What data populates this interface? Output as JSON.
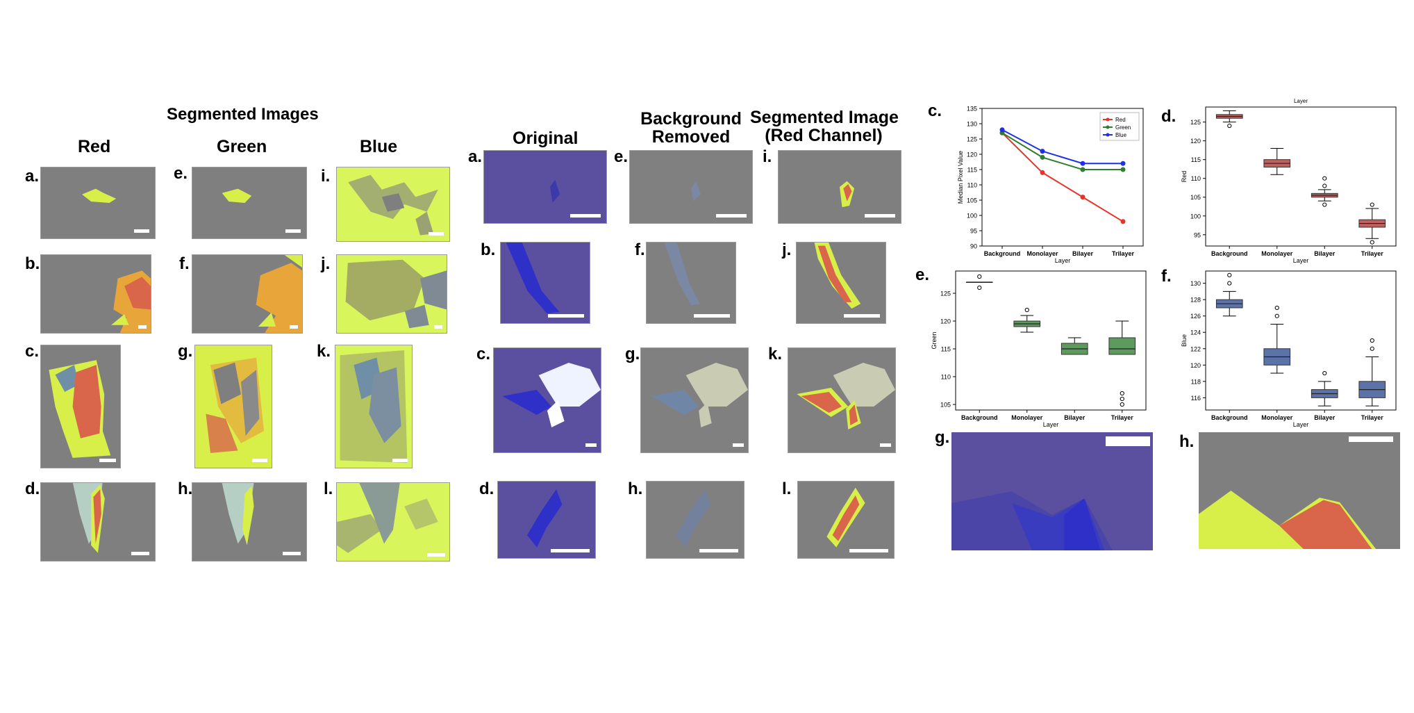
{
  "section_left": {
    "title": "Segmented Images",
    "columns": [
      "Red",
      "Green",
      "Blue"
    ]
  },
  "section_mid": {
    "columns": [
      "Original",
      "Background\nRemoved",
      "Segmented Image\n(Red Channel)"
    ]
  },
  "panel_labels_left": [
    "a.",
    "b.",
    "c.",
    "d.",
    "e.",
    "f.",
    "g.",
    "h.",
    "i.",
    "j.",
    "k.",
    "l."
  ],
  "panel_labels_mid": [
    "a.",
    "b.",
    "c.",
    "d.",
    "e.",
    "f.",
    "g.",
    "h.",
    "i.",
    "j.",
    "k.",
    "l."
  ],
  "panel_labels_right": [
    "c.",
    "d.",
    "e.",
    "f.",
    "g.",
    "h."
  ],
  "colors": {
    "gray_bg": "#7f7f7f",
    "flake_yellow": "#d8ef4a",
    "flake_red": "#d9654b",
    "flake_orange": "#e8a63a",
    "blue_bg": "#5b4fa0",
    "lime": "#d9f55c",
    "red_line": "#e8322a",
    "green_line": "#2f7d2f",
    "blue_line": "#1f2fe6",
    "box_red": "#c26060",
    "box_green": "#5e9a5e",
    "box_blue": "#5b73a9"
  },
  "chart_data": [
    {
      "id": "c",
      "type": "line",
      "title": "",
      "xlabel": "Layer",
      "ylabel": "Median Pixel Value",
      "categories": [
        "Background",
        "Monolayer",
        "Bilayer",
        "Trilayer"
      ],
      "ylim": [
        90,
        135
      ],
      "yticks": [
        90,
        95,
        100,
        105,
        110,
        115,
        120,
        125,
        130,
        135
      ],
      "legend_position": "top-right",
      "series": [
        {
          "name": "Red",
          "color": "#e8322a",
          "values": [
            127,
            114,
            106,
            98
          ]
        },
        {
          "name": "Green",
          "color": "#2f7d2f",
          "values": [
            127,
            119,
            115,
            115
          ]
        },
        {
          "name": "Blue",
          "color": "#1f2fe6",
          "values": [
            128,
            121,
            117,
            117
          ]
        }
      ]
    },
    {
      "id": "d",
      "type": "box",
      "title": "Layer",
      "xlabel": "Layer",
      "ylabel": "Red",
      "categories": [
        "Background",
        "Monolayer",
        "Bilayer",
        "Trilayer"
      ],
      "ylim": [
        92,
        129
      ],
      "yticks": [
        95,
        100,
        105,
        110,
        115,
        120,
        125
      ],
      "color": "#c26060",
      "boxes": [
        {
          "whislo": 125,
          "q1": 126,
          "med": 126.5,
          "q3": 127,
          "whishi": 128,
          "fliers": [
            124
          ]
        },
        {
          "whislo": 111,
          "q1": 113,
          "med": 114,
          "q3": 115,
          "whishi": 118,
          "fliers": []
        },
        {
          "whislo": 104,
          "q1": 105,
          "med": 105.5,
          "q3": 106,
          "whishi": 107,
          "fliers": [
            103,
            108,
            110
          ]
        },
        {
          "whislo": 94,
          "q1": 97,
          "med": 98,
          "q3": 99,
          "whishi": 102,
          "fliers": [
            93,
            103
          ]
        }
      ]
    },
    {
      "id": "e",
      "type": "box",
      "title": "",
      "xlabel": "Layer",
      "ylabel": "Green",
      "categories": [
        "Background",
        "Monolayer",
        "Bilayer",
        "Trilayer"
      ],
      "ylim": [
        104,
        129
      ],
      "yticks": [
        105,
        110,
        115,
        120,
        125
      ],
      "color": "#5e9a5e",
      "boxes": [
        {
          "whislo": 127,
          "q1": 127,
          "med": 127,
          "q3": 127,
          "whishi": 127,
          "fliers": [
            126,
            128
          ]
        },
        {
          "whislo": 118,
          "q1": 119,
          "med": 119.5,
          "q3": 120,
          "whishi": 121,
          "fliers": [
            122
          ]
        },
        {
          "whislo": 114,
          "q1": 114,
          "med": 115,
          "q3": 116,
          "whishi": 117,
          "fliers": []
        },
        {
          "whislo": 114,
          "q1": 114,
          "med": 115,
          "q3": 117,
          "whishi": 120,
          "fliers": [
            105,
            106,
            107
          ]
        }
      ]
    },
    {
      "id": "f",
      "type": "box",
      "title": "",
      "xlabel": "Layer",
      "ylabel": "Blue",
      "categories": [
        "Background",
        "Monolayer",
        "Bilayer",
        "Trilayer"
      ],
      "ylim": [
        114.5,
        131.5
      ],
      "yticks": [
        116,
        118,
        120,
        122,
        124,
        126,
        128,
        130
      ],
      "color": "#5b73a9",
      "boxes": [
        {
          "whislo": 126,
          "q1": 127,
          "med": 127.5,
          "q3": 128,
          "whishi": 129,
          "fliers": [
            130,
            131
          ]
        },
        {
          "whislo": 119,
          "q1": 120,
          "med": 121,
          "q3": 122,
          "whishi": 125,
          "fliers": [
            126,
            127
          ]
        },
        {
          "whislo": 115,
          "q1": 116,
          "med": 116.5,
          "q3": 117,
          "whishi": 118,
          "fliers": [
            119
          ]
        },
        {
          "whislo": 115,
          "q1": 116,
          "med": 117,
          "q3": 118,
          "whishi": 121,
          "fliers": [
            122,
            123
          ]
        }
      ]
    }
  ]
}
